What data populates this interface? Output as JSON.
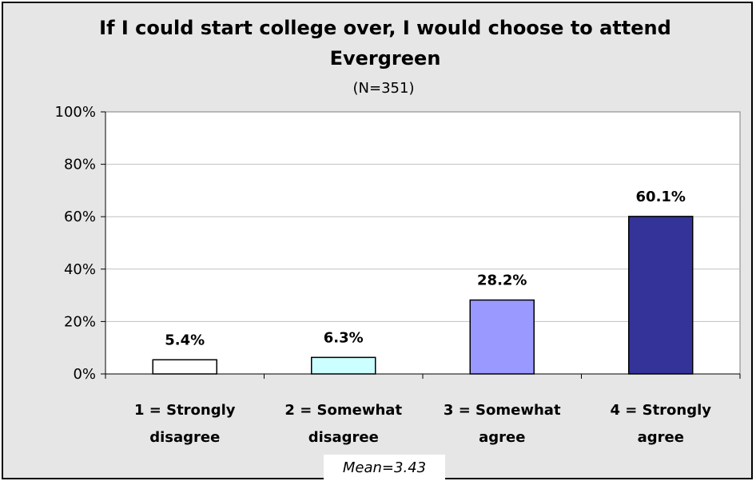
{
  "chart_data": {
    "type": "bar",
    "title_lines": [
      "If I could start college over, I would choose to attend",
      "Evergreen"
    ],
    "subtitle": "(N=351)",
    "categories": [
      [
        "1 = Strongly",
        "disagree"
      ],
      [
        "2 = Somewhat",
        "disagree"
      ],
      [
        "3 = Somewhat",
        "agree"
      ],
      [
        "4 = Strongly",
        "agree"
      ]
    ],
    "values": [
      5.4,
      6.3,
      28.2,
      60.1
    ],
    "data_labels": [
      "5.4%",
      "6.3%",
      "28.2%",
      "60.1%"
    ],
    "bar_colors": [
      "#ffffff",
      "#ccffff",
      "#9999ff",
      "#333399"
    ],
    "yticks": [
      0,
      20,
      40,
      60,
      80,
      100
    ],
    "ytick_labels": [
      "0%",
      "20%",
      "40%",
      "60%",
      "80%",
      "100%"
    ],
    "ylim": [
      0,
      100
    ],
    "grid": true,
    "xlabel": "",
    "ylabel": "",
    "annotation": "Mean=3.43"
  }
}
